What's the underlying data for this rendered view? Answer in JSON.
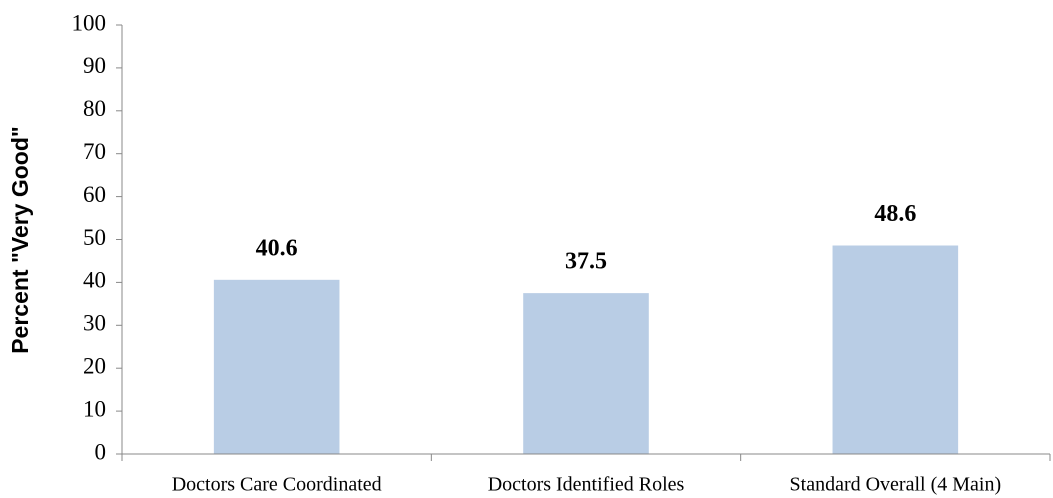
{
  "chart_data": {
    "type": "bar",
    "y_label": "Percent \"Very Good\"",
    "categories": [
      "Doctors Care Coordinated",
      "Doctors Identified Roles",
      "Standard Overall (4 Main)"
    ],
    "values": [
      40.6,
      37.5,
      48.6
    ],
    "color": "#b9cde5",
    "ylim": [
      0,
      100
    ],
    "yticks": [
      0,
      10,
      20,
      30,
      40,
      50,
      60,
      70,
      80,
      90,
      100
    ],
    "grid": false
  }
}
